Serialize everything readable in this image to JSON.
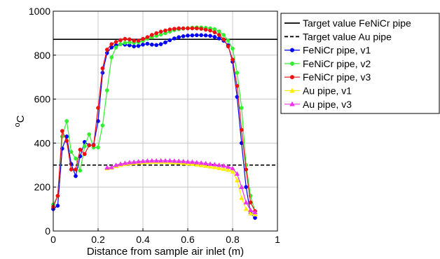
{
  "chart_data": {
    "type": "line",
    "title": "",
    "xlabel": "Distance from sample air inlet (m)",
    "ylabel_base": "C",
    "ylabel_superscript": "o",
    "xlim": [
      0,
      1
    ],
    "ylim": [
      0,
      1000
    ],
    "xticks": [
      0,
      0.2,
      0.4,
      0.6,
      0.8,
      1
    ],
    "xtick_labels": [
      "0",
      "0.2",
      "0.4",
      "0.6",
      "0.8",
      "1"
    ],
    "yticks": [
      0,
      200,
      400,
      600,
      800,
      1000
    ],
    "ytick_labels": [
      "0",
      "200",
      "400",
      "600",
      "800",
      "1000"
    ],
    "grid": true,
    "legend_position": "outside right, top",
    "reference_lines": [
      {
        "name": "Target value FeNiCr pipe",
        "y": 872,
        "color": "#000000",
        "style": "solid"
      },
      {
        "name": "Target value Au pipe",
        "y": 300,
        "color": "#000000",
        "style": "dashed"
      }
    ],
    "series": [
      {
        "name": "FeNiCr pipe, v1",
        "color": "#0000ff",
        "marker": "circle",
        "x": [
          0,
          0.02,
          0.04,
          0.06,
          0.08,
          0.1,
          0.12,
          0.14,
          0.16,
          0.18,
          0.2,
          0.22,
          0.24,
          0.26,
          0.28,
          0.3,
          0.32,
          0.34,
          0.36,
          0.38,
          0.4,
          0.42,
          0.44,
          0.46,
          0.48,
          0.5,
          0.52,
          0.54,
          0.56,
          0.58,
          0.6,
          0.62,
          0.64,
          0.66,
          0.68,
          0.7,
          0.72,
          0.74,
          0.76,
          0.78,
          0.8,
          0.82,
          0.84,
          0.86,
          0.88,
          0.9
        ],
        "y": [
          100,
          115,
          375,
          430,
          305,
          250,
          340,
          405,
          390,
          392,
          500,
          720,
          810,
          835,
          845,
          850,
          848,
          845,
          840,
          842,
          848,
          852,
          848,
          846,
          850,
          858,
          868,
          876,
          882,
          886,
          889,
          890,
          891,
          891,
          890,
          888,
          883,
          876,
          866,
          845,
          770,
          610,
          400,
          200,
          80,
          60
        ]
      },
      {
        "name": "FeNiCr pipe, v2",
        "color": "#33ee33",
        "marker": "circle",
        "x": [
          0,
          0.02,
          0.04,
          0.06,
          0.08,
          0.1,
          0.12,
          0.14,
          0.16,
          0.18,
          0.2,
          0.22,
          0.24,
          0.26,
          0.28,
          0.3,
          0.32,
          0.34,
          0.36,
          0.38,
          0.4,
          0.42,
          0.44,
          0.46,
          0.48,
          0.5,
          0.52,
          0.54,
          0.56,
          0.58,
          0.6,
          0.62,
          0.64,
          0.66,
          0.68,
          0.7,
          0.72,
          0.74,
          0.76,
          0.78,
          0.8,
          0.82,
          0.84,
          0.86,
          0.88,
          0.9
        ],
        "y": [
          120,
          160,
          430,
          500,
          360,
          330,
          275,
          385,
          440,
          380,
          380,
          480,
          640,
          790,
          835,
          850,
          856,
          858,
          856,
          858,
          865,
          875,
          882,
          888,
          894,
          900,
          907,
          914,
          918,
          921,
          923,
          925,
          926,
          926,
          924,
          922,
          918,
          908,
          892,
          866,
          830,
          720,
          560,
          300,
          160,
          90
        ]
      },
      {
        "name": "FeNiCr pipe, v3",
        "color": "#ee1111",
        "marker": "circle",
        "x": [
          0,
          0.02,
          0.04,
          0.06,
          0.08,
          0.1,
          0.12,
          0.14,
          0.16,
          0.18,
          0.2,
          0.22,
          0.24,
          0.26,
          0.28,
          0.3,
          0.32,
          0.34,
          0.36,
          0.38,
          0.4,
          0.42,
          0.44,
          0.46,
          0.48,
          0.5,
          0.52,
          0.54,
          0.56,
          0.58,
          0.6,
          0.62,
          0.64,
          0.66,
          0.68,
          0.7,
          0.72,
          0.74,
          0.76,
          0.78,
          0.8,
          0.82,
          0.84,
          0.86,
          0.88,
          0.9
        ],
        "y": [
          110,
          160,
          455,
          410,
          280,
          280,
          370,
          350,
          390,
          390,
          560,
          740,
          825,
          850,
          860,
          868,
          874,
          872,
          866,
          866,
          874,
          882,
          892,
          900,
          907,
          912,
          917,
          920,
          922,
          922,
          922,
          922,
          922,
          920,
          916,
          912,
          904,
          892,
          872,
          840,
          780,
          660,
          460,
          280,
          130,
          90
        ]
      },
      {
        "name": "Au pipe, v1",
        "color": "#ffee00",
        "marker": "triangle",
        "x": [
          0.24,
          0.26,
          0.28,
          0.3,
          0.32,
          0.34,
          0.36,
          0.38,
          0.4,
          0.42,
          0.44,
          0.46,
          0.48,
          0.5,
          0.52,
          0.54,
          0.56,
          0.58,
          0.6,
          0.62,
          0.64,
          0.66,
          0.68,
          0.7,
          0.72,
          0.74,
          0.76,
          0.78,
          0.8,
          0.82,
          0.84,
          0.86,
          0.88,
          0.9
        ],
        "y": [
          285,
          288,
          295,
          300,
          304,
          307,
          309,
          311,
          312,
          313,
          314,
          314,
          314,
          314,
          313,
          312,
          311,
          309,
          307,
          305,
          302,
          299,
          296,
          293,
          290,
          286,
          282,
          278,
          270,
          230,
          150,
          100,
          80,
          75
        ]
      },
      {
        "name": "Au pipe, v3",
        "color": "#ee33ee",
        "marker": "triangle",
        "x": [
          0.24,
          0.26,
          0.28,
          0.3,
          0.32,
          0.34,
          0.36,
          0.38,
          0.4,
          0.42,
          0.44,
          0.46,
          0.48,
          0.5,
          0.52,
          0.54,
          0.56,
          0.58,
          0.6,
          0.62,
          0.64,
          0.66,
          0.68,
          0.7,
          0.72,
          0.74,
          0.76,
          0.78,
          0.8,
          0.82,
          0.84,
          0.86,
          0.88,
          0.9
        ],
        "y": [
          288,
          290,
          300,
          305,
          309,
          312,
          314,
          316,
          318,
          319,
          320,
          320,
          320,
          320,
          320,
          319,
          318,
          317,
          315,
          314,
          312,
          310,
          308,
          305,
          303,
          300,
          297,
          292,
          285,
          260,
          200,
          130,
          95,
          85
        ]
      }
    ]
  }
}
